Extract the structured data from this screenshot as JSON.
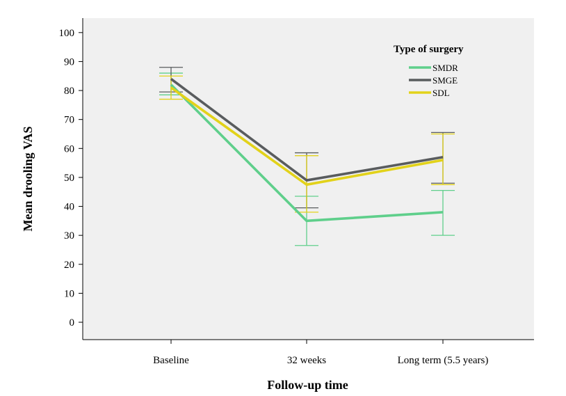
{
  "chart_data": {
    "type": "line",
    "xlabel": "Follow-up time",
    "ylabel": "Mean drooling VAS",
    "categories": [
      "Baseline",
      "32 weeks",
      "Long term (5.5 years)"
    ],
    "ylim": [
      -6,
      105
    ],
    "yticks": [
      0,
      10,
      20,
      30,
      40,
      50,
      60,
      70,
      80,
      90,
      100
    ],
    "grid": false,
    "background": "#f0f0f0",
    "legend": {
      "title": "Type of surgery",
      "placement": "top-right"
    },
    "series": [
      {
        "name": "SMDR",
        "color": "#5fcf8b",
        "values": [
          82,
          35,
          38
        ],
        "error_low": [
          78.5,
          26.5,
          30
        ],
        "error_high": [
          86,
          43.5,
          45.5
        ]
      },
      {
        "name": "SMGE",
        "color": "#595c5e",
        "values": [
          84,
          49,
          57
        ],
        "error_low": [
          79.5,
          39.5,
          48
        ],
        "error_high": [
          88,
          58.5,
          65.5
        ]
      },
      {
        "name": "SDL",
        "color": "#e2d21a",
        "values": [
          81,
          47.5,
          56
        ],
        "error_low": [
          77,
          38,
          47.5
        ],
        "error_high": [
          85,
          57.5,
          65
        ]
      }
    ]
  }
}
